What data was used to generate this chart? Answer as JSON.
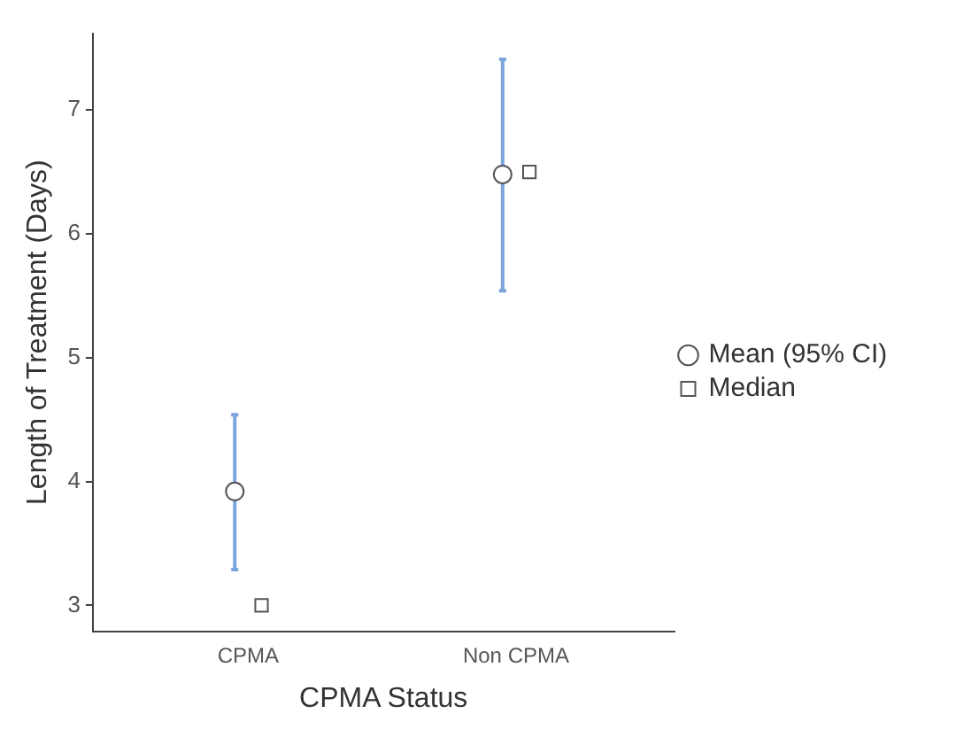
{
  "chart_data": {
    "type": "scatter",
    "xlabel": "CPMA Status",
    "ylabel": "Length of Treatment (Days)",
    "categories": [
      "CPMA",
      "Non CPMA"
    ],
    "series": [
      {
        "name": "Mean (95% CI)",
        "type": "scatter",
        "marker": "circle",
        "color": "#555555",
        "x": [
          "CPMA",
          "Non CPMA"
        ],
        "values": [
          3.92,
          6.48
        ],
        "errors": [
          [
            3.29,
            4.54
          ],
          [
            5.54,
            7.41
          ]
        ]
      },
      {
        "name": "Median",
        "type": "scatter",
        "marker": "square",
        "color": "#555555",
        "x": [
          "CPMA",
          "Non CPMA"
        ],
        "values": [
          3.0,
          6.5
        ]
      }
    ],
    "ylim": [
      2.79,
      7.62
    ],
    "yticks": [
      3,
      4,
      5,
      6,
      7
    ],
    "grid": false,
    "legend": "right"
  }
}
